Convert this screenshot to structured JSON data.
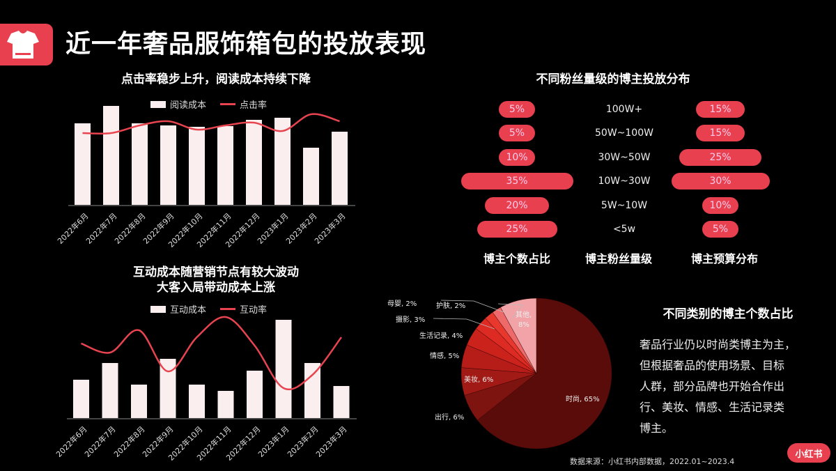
{
  "header": {
    "title": "近一年奢品服饰箱包的投放表现",
    "icon": "tshirt-icon"
  },
  "chart_data": [
    {
      "type": "bar",
      "title": "点击率稳步上升，阅读成本持续下降",
      "categories": [
        "2022年6月",
        "2022年7月",
        "2022年8月",
        "2022年9月",
        "2022年10月",
        "2022年11月",
        "2022年12月",
        "2023年1月",
        "2023年2月",
        "2023年3月"
      ],
      "series": [
        {
          "name": "阅读成本",
          "kind": "bar",
          "values": [
            117,
            142,
            117,
            114,
            112,
            113,
            122,
            125,
            82,
            105
          ]
        },
        {
          "name": "点击率",
          "kind": "line",
          "values": [
            103,
            103,
            114,
            120,
            108,
            114,
            118,
            106,
            130,
            120
          ]
        }
      ],
      "xlabel": "",
      "ylabel": "",
      "grid": false,
      "legend_position": "top",
      "note": "values are relative pixel heights; no axis ticks shown"
    },
    {
      "type": "bar",
      "title": "互动成本随营销节点有较大波动 大客入局带动成本上涨",
      "categories": [
        "2022年6月",
        "2022年7月",
        "2022年8月",
        "2022年9月",
        "2022年10月",
        "2022年11月",
        "2022年12月",
        "2023年1月",
        "2023年2月",
        "2023年3月"
      ],
      "series": [
        {
          "name": "互动成本",
          "kind": "bar",
          "values": [
            55,
            79,
            48,
            85,
            48,
            39,
            68,
            141,
            79,
            46
          ]
        },
        {
          "name": "互动率",
          "kind": "line",
          "values": [
            107,
            94,
            126,
            67,
            116,
            145,
            104,
            43,
            62,
            116
          ]
        }
      ],
      "xlabel": "",
      "ylabel": "",
      "grid": false,
      "legend_position": "top",
      "note": "values are relative pixel heights; no axis ticks shown"
    },
    {
      "type": "bar",
      "title": "不同粉丝量级的博主投放分布",
      "categories": [
        "100W+",
        "50W~100W",
        "30W~50W",
        "10W~30W",
        "5W~10W",
        "<5w"
      ],
      "series": [
        {
          "name": "博主个数占比",
          "values": [
            5,
            5,
            10,
            35,
            20,
            25
          ]
        },
        {
          "name": "博主预算分布",
          "values": [
            15,
            15,
            25,
            30,
            10,
            5
          ]
        }
      ],
      "xlabel": "博主粉丝量级",
      "unit": "%"
    },
    {
      "type": "pie",
      "title": "不同类别的博主个数占比",
      "labels": [
        "时尚",
        "出行",
        "美妆",
        "情感",
        "生活记录",
        "摄影",
        "母婴",
        "护肤",
        "其他"
      ],
      "values": [
        65,
        6,
        6,
        5,
        4,
        3,
        2,
        2,
        8
      ],
      "colors": [
        "#5a0c0a",
        "#7e1410",
        "#a11a15",
        "#b71d18",
        "#cc221c",
        "#dd2a22",
        "#e8382e",
        "#ee6a6a",
        "#f1a3a7"
      ],
      "unit": "%"
    }
  ],
  "legends": {
    "top_bar": "阅读成本",
    "top_line": "点击率",
    "bottom_bar": "互动成本",
    "bottom_line": "互动率"
  },
  "bottom_chart_title": [
    "互动成本随营销节点有较大波动",
    "大客入局带动成本上涨"
  ],
  "tiers": {
    "rows": [
      {
        "tier": "100W+",
        "count": "5%",
        "budget": "15%"
      },
      {
        "tier": "50W~100W",
        "count": "5%",
        "budget": "15%"
      },
      {
        "tier": "30W~50W",
        "count": "10%",
        "budget": "25%"
      },
      {
        "tier": "10W~30W",
        "count": "35%",
        "budget": "30%"
      },
      {
        "tier": "5W~10W",
        "count": "20%",
        "budget": "10%"
      },
      {
        "tier": "<5w",
        "count": "25%",
        "budget": "5%"
      }
    ],
    "col_labels": [
      "博主个数占比",
      "博主粉丝量级",
      "博主预算分布"
    ]
  },
  "pie_labels": {
    "fashion": "时尚, 65%",
    "travel": "出行, 6%",
    "beauty": "美妆, 6%",
    "emotion": "情感, 5%",
    "life": "生活记录, 4%",
    "photo": "摄影, 3%",
    "baby": "母婴, 2%",
    "skin": "护肤, 2%",
    "other_1": "其他,",
    "other_2": "8%"
  },
  "description": {
    "title": "不同类别的博主个数占比",
    "lines": [
      "奢品行业仍以时尚类博主为主，",
      "但根据奢品的使用场景、目标",
      "人群，部分品牌也开始合作出",
      "行、美妆、情感、生活记录类",
      "博主。"
    ]
  },
  "footer": {
    "source": "数据来源：小红书内部数据，2022.01~2023.4",
    "brand": "小红书"
  },
  "colors": {
    "accent": "#e8404e",
    "bar": "#fbeeee",
    "line": "#e84450",
    "background": "#000000"
  }
}
